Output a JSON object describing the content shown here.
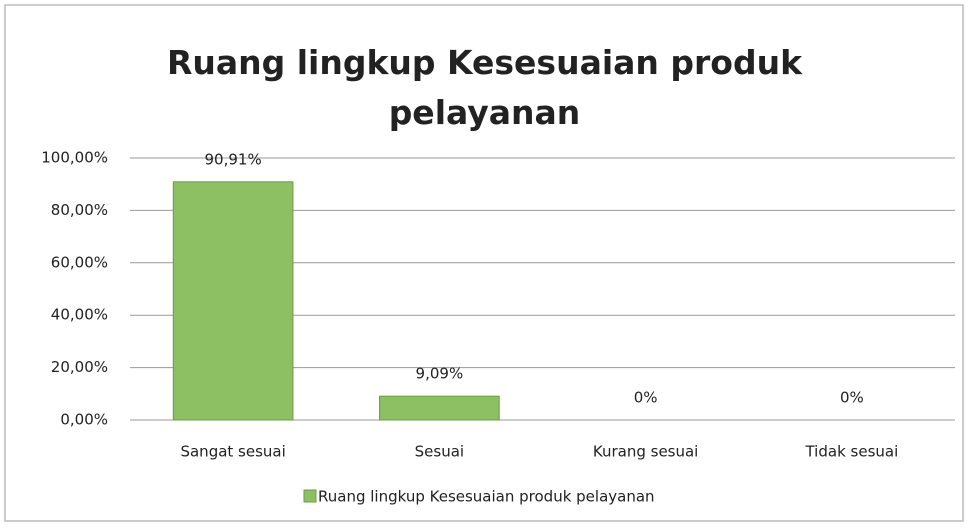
{
  "chart_data": {
    "type": "bar",
    "title": "Ruang lingkup Kesesuaian produk pelayanan",
    "categories": [
      "Sangat sesuai",
      "Sesuai",
      "Kurang sesuai",
      "Tidak sesuai"
    ],
    "series": [
      {
        "name": "Ruang lingkup Kesesuaian produk pelayanan",
        "color": "#8cc063",
        "values": [
          90.91,
          9.09,
          0,
          0
        ],
        "value_labels": [
          "90,91%",
          "9,09%",
          "0%",
          "0%"
        ]
      }
    ],
    "ylim": [
      0,
      100
    ],
    "yticks": [
      {
        "value": 0,
        "label": "0,00%"
      },
      {
        "value": 20,
        "label": "20,00%"
      },
      {
        "value": 40,
        "label": "40,00%"
      },
      {
        "value": 60,
        "label": "60,00%"
      },
      {
        "value": 80,
        "label": "80,00%"
      },
      {
        "value": 100,
        "label": "100,00%"
      }
    ],
    "grid": true,
    "legend": "bottom"
  }
}
